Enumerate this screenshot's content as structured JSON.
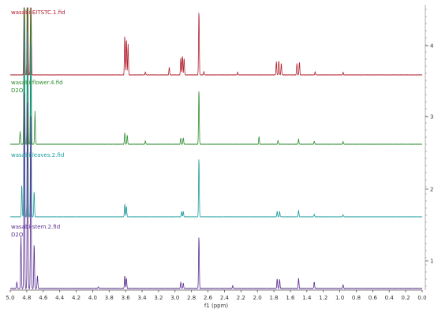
{
  "chart_data": {
    "type": "line",
    "title": "",
    "xlabel": "f1 (ppm)",
    "ylabel": "",
    "xlim": [
      5.0,
      0.0
    ],
    "x_reversed": true,
    "x_ticks": [
      5.0,
      4.8,
      4.6,
      4.4,
      4.2,
      4.0,
      3.8,
      3.6,
      3.4,
      3.2,
      3.0,
      2.8,
      2.6,
      2.4,
      2.2,
      2.0,
      1.8,
      1.6,
      1.4,
      1.2,
      1.0,
      0.8,
      0.6,
      0.4,
      0.2,
      0.0
    ],
    "right_ticks": [
      "4",
      "3",
      "2",
      "1"
    ],
    "grid": false,
    "series": [
      {
        "name": "wasabi-EITSTC.1.fid",
        "sublabel": "",
        "color": "#b01e2c",
        "stack_index": 4,
        "peaks": [
          [
            4.83,
            3.0
          ],
          [
            4.79,
            3.0
          ],
          [
            4.75,
            2.6
          ],
          [
            3.61,
            0.62
          ],
          [
            3.59,
            0.55
          ],
          [
            3.57,
            0.48
          ],
          [
            3.07,
            0.12
          ],
          [
            3.36,
            0.04
          ],
          [
            2.93,
            0.26
          ],
          [
            2.91,
            0.3
          ],
          [
            2.89,
            0.26
          ],
          [
            2.71,
            1.0
          ],
          [
            2.65,
            0.05
          ],
          [
            2.24,
            0.04
          ],
          [
            1.77,
            0.2
          ],
          [
            1.74,
            0.22
          ],
          [
            1.71,
            0.18
          ],
          [
            1.52,
            0.18
          ],
          [
            1.49,
            0.2
          ],
          [
            1.3,
            0.04
          ],
          [
            0.96,
            0.04
          ]
        ]
      },
      {
        "name": "wasabi-flower.4.fid",
        "sublabel": "D2O",
        "color": "#2e8b2e",
        "stack_index": 3,
        "peaks": [
          [
            4.88,
            0.2
          ],
          [
            4.83,
            3.0
          ],
          [
            4.79,
            3.0
          ],
          [
            4.75,
            2.6
          ],
          [
            4.7,
            0.5
          ],
          [
            3.61,
            0.18
          ],
          [
            3.58,
            0.14
          ],
          [
            3.36,
            0.05
          ],
          [
            2.93,
            0.1
          ],
          [
            2.9,
            0.1
          ],
          [
            2.71,
            0.85
          ],
          [
            1.98,
            0.12
          ],
          [
            1.75,
            0.06
          ],
          [
            1.5,
            0.08
          ],
          [
            1.31,
            0.05
          ],
          [
            0.96,
            0.04
          ]
        ]
      },
      {
        "name": "wasabi-leaves.2.fid",
        "sublabel": "",
        "color": "#1a9a9a",
        "stack_index": 2,
        "peaks": [
          [
            4.86,
            0.5
          ],
          [
            4.83,
            3.0
          ],
          [
            4.79,
            3.0
          ],
          [
            4.75,
            2.6
          ],
          [
            4.71,
            0.4
          ],
          [
            3.61,
            0.2
          ],
          [
            3.59,
            0.16
          ],
          [
            2.92,
            0.08
          ],
          [
            2.9,
            0.08
          ],
          [
            2.71,
            0.92
          ],
          [
            1.76,
            0.08
          ],
          [
            1.73,
            0.08
          ],
          [
            1.5,
            0.1
          ],
          [
            1.31,
            0.04
          ],
          [
            0.96,
            0.03
          ]
        ]
      },
      {
        "name": "wasabi-stem.2.fid",
        "sublabel": "D2O",
        "color": "#5a2d91",
        "stack_index": 1,
        "peaks": [
          [
            4.92,
            0.1
          ],
          [
            4.87,
            0.8
          ],
          [
            4.83,
            3.0
          ],
          [
            4.79,
            3.0
          ],
          [
            4.75,
            2.6
          ],
          [
            4.71,
            0.7
          ],
          [
            4.67,
            0.2
          ],
          [
            3.61,
            0.2
          ],
          [
            3.59,
            0.16
          ],
          [
            3.93,
            0.03
          ],
          [
            2.93,
            0.1
          ],
          [
            2.9,
            0.08
          ],
          [
            2.71,
            0.82
          ],
          [
            2.3,
            0.04
          ],
          [
            1.76,
            0.15
          ],
          [
            1.73,
            0.14
          ],
          [
            1.5,
            0.16
          ],
          [
            1.31,
            0.1
          ],
          [
            0.96,
            0.06
          ]
        ]
      }
    ]
  }
}
